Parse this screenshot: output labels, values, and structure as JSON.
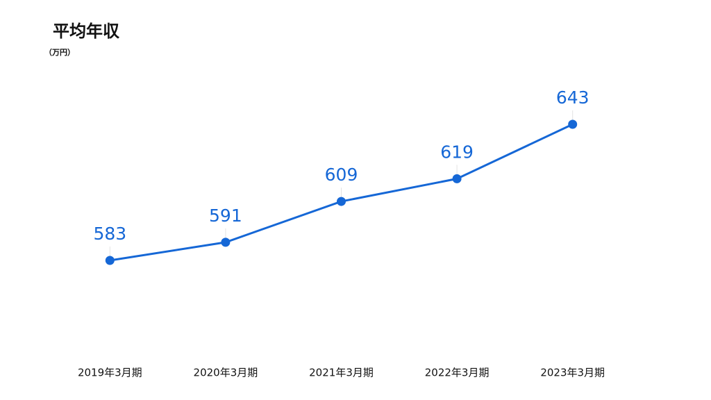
{
  "chart_data": {
    "type": "line",
    "title": "平均年収",
    "subtitle": "（万円）",
    "categories": [
      "2019年3月期",
      "2020年3月期",
      "2021年3月期",
      "2022年3月期",
      "2023年3月期"
    ],
    "values": [
      583,
      591,
      609,
      619,
      643
    ],
    "color": "#1567d6"
  }
}
